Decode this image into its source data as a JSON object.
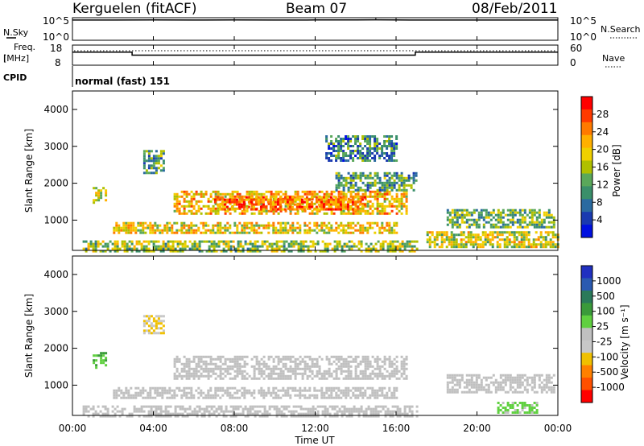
{
  "header": {
    "site": "Kerguelen (fitACF)",
    "beam": "Beam 07",
    "date": "08/Feb/2011"
  },
  "noise_panel": {
    "left_label": "N.Sky",
    "right_label": "N.Search",
    "left_ticks": [
      "10^5",
      "10^0"
    ],
    "right_ticks": [
      "10^5",
      "10^0"
    ]
  },
  "freq_panel": {
    "left_label_1": "Freq.",
    "left_label_2": "[MHz]",
    "right_label": "Nave",
    "left_ticks": [
      "18",
      "8"
    ],
    "right_ticks": [
      "60",
      "0"
    ]
  },
  "cpid": {
    "label": "CPID",
    "program": "normal (fast) 151"
  },
  "power_panel": {
    "ylabel": "Slant Range [km]",
    "yticks": [
      "4000",
      "3000",
      "2000",
      "1000"
    ],
    "colorbar_label": "Power [dB]",
    "colorbar_ticks": [
      "28",
      "24",
      "20",
      "16",
      "12",
      "8",
      "4"
    ],
    "colorbar_colors": [
      "#ff0000",
      "#ff3a00",
      "#ff7a00",
      "#ffb000",
      "#f0d000",
      "#b0c000",
      "#5aa85a",
      "#3a8f6a",
      "#2a6aa0",
      "#1a3ab0",
      "#0010e0"
    ]
  },
  "velocity_panel": {
    "ylabel": "Slant Range [km]",
    "yticks": [
      "4000",
      "3000",
      "2000",
      "1000"
    ],
    "colorbar_label": "Velocity [m s⁻¹]",
    "colorbar_ticks": [
      "1000",
      "500",
      "100",
      "25",
      "-25",
      "-100",
      "-500",
      "-1000"
    ],
    "colorbar_colors": [
      "#2030c0",
      "#2a5ab0",
      "#2a7a5a",
      "#3a9a3a",
      "#60d040",
      "#c0c0c0",
      "#c8c8c8",
      "#f0c000",
      "#ff8000",
      "#ff5000",
      "#ff0000"
    ]
  },
  "x_axis": {
    "ticks": [
      "00:00",
      "04:00",
      "08:00",
      "12:00",
      "16:00",
      "20:00",
      "00:00"
    ],
    "label": "Time UT"
  },
  "chart_data": [
    {
      "type": "line",
      "panel": "noise",
      "x_range_hours": [
        0,
        24
      ],
      "scale": "log",
      "ylim": [
        1,
        100000
      ],
      "series": [
        {
          "x": [
            0,
            2,
            4,
            6,
            8,
            10,
            12,
            14,
            15,
            16,
            18,
            20,
            22,
            24
          ],
          "y": [
            30000,
            30000,
            31000,
            30000,
            31000,
            30000,
            31000,
            32000,
            35000,
            31000,
            30000,
            30000,
            30000,
            30000
          ]
        }
      ]
    },
    {
      "type": "line",
      "panel": "frequency",
      "x_range_hours": [
        0,
        24
      ],
      "ylim": [
        8,
        18
      ],
      "series": [
        {
          "x": [
            0,
            2.95,
            2.95,
            16.95,
            16.95,
            24
          ],
          "y": [
            14.5,
            14.5,
            13.0,
            13.0,
            14.5,
            14.5
          ]
        }
      ]
    },
    {
      "type": "heatmap",
      "panel": "power",
      "x_range_hours": [
        0,
        24
      ],
      "ylim": [
        180,
        4500
      ],
      "units": "dB",
      "zlim": [
        0,
        30
      ],
      "regions": [
        {
          "t": [
            5.0,
            16.5
          ],
          "r": [
            1200,
            1800
          ],
          "db": 20
        },
        {
          "t": [
            7.0,
            14.5
          ],
          "r": [
            1300,
            1650
          ],
          "db": 24
        },
        {
          "t": [
            2.0,
            16.0
          ],
          "r": [
            650,
            950
          ],
          "db": 18
        },
        {
          "t": [
            0.5,
            17.0
          ],
          "r": [
            180,
            450
          ],
          "db": 14
        },
        {
          "t": [
            1.0,
            1.6
          ],
          "r": [
            1500,
            1900
          ],
          "db": 16
        },
        {
          "t": [
            3.5,
            4.5
          ],
          "r": [
            2300,
            2900
          ],
          "db": 10
        },
        {
          "t": [
            12.5,
            16.0
          ],
          "r": [
            2600,
            3300
          ],
          "db": 8
        },
        {
          "t": [
            17.5,
            24.0
          ],
          "r": [
            250,
            700
          ],
          "db": 16
        },
        {
          "t": [
            18.5,
            23.8
          ],
          "r": [
            800,
            1300
          ],
          "db": 12
        },
        {
          "t": [
            13.0,
            17.0
          ],
          "r": [
            1800,
            2300
          ],
          "db": 10
        }
      ]
    },
    {
      "type": "heatmap",
      "panel": "velocity",
      "x_range_hours": [
        0,
        24
      ],
      "ylim": [
        180,
        4500
      ],
      "units": "m s-1",
      "zlim": [
        -1000,
        1000
      ],
      "regions": [
        {
          "t": [
            5.0,
            16.5
          ],
          "r": [
            1200,
            1800
          ],
          "v": 0
        },
        {
          "t": [
            2.0,
            16.0
          ],
          "r": [
            650,
            950
          ],
          "v": 0
        },
        {
          "t": [
            0.5,
            17.0
          ],
          "r": [
            180,
            450
          ],
          "v": -30
        },
        {
          "t": [
            1.0,
            1.6
          ],
          "r": [
            1500,
            1900
          ],
          "v": 300
        },
        {
          "t": [
            3.5,
            4.5
          ],
          "r": [
            2400,
            2900
          ],
          "v": -300
        },
        {
          "t": [
            21.0,
            23.0
          ],
          "r": [
            250,
            550
          ],
          "v": 120
        },
        {
          "t": [
            18.5,
            23.8
          ],
          "r": [
            800,
            1300
          ],
          "v": 0
        }
      ]
    }
  ]
}
